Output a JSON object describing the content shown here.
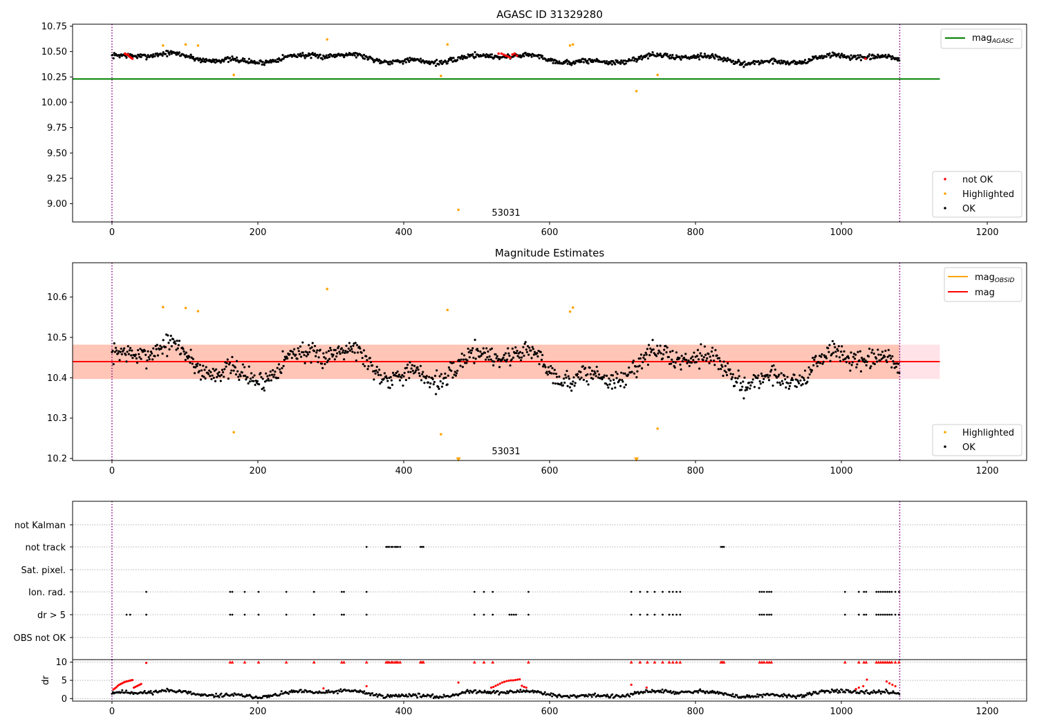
{
  "figure": {
    "panel1_title": "AGASC ID 31329280",
    "panel2_title": "Magnitude Estimates",
    "obsid_annotation": "53031"
  },
  "chart_data": [
    {
      "type": "scatter",
      "name": "panel1",
      "title": "AGASC ID 31329280",
      "xlim": [
        -54,
        1254
      ],
      "ylim": [
        8.82,
        10.77
      ],
      "xticks": [
        0,
        200,
        400,
        600,
        800,
        1000,
        1200
      ],
      "yticks": [
        10.75,
        10.5,
        10.25,
        10.0,
        9.75,
        9.5,
        9.25,
        9.0
      ],
      "ytick_labels": [
        "10.75",
        "10.50",
        "10.25",
        "10.00",
        "9.75",
        "9.50",
        "9.25",
        "9.00"
      ],
      "vlines": [
        0,
        1080
      ],
      "hline": {
        "label": "mag_AGASC",
        "y": 10.23,
        "x_range": [
          -54,
          1135
        ],
        "color": "#008000"
      },
      "annotation": {
        "text": "53031",
        "x": 540,
        "y": 8.86
      },
      "legends": [
        {
          "position": "upper-right",
          "entries": [
            {
              "label": "mag",
              "subscript": "AGASC",
              "color": "#008000",
              "marker": "line"
            }
          ]
        },
        {
          "position": "lower-right",
          "entries": [
            {
              "label": "not OK",
              "color": "#ff0000",
              "marker": "dot"
            },
            {
              "label": "Highlighted",
              "color": "#ffa500",
              "marker": "dot"
            },
            {
              "label": "OK",
              "color": "#000000",
              "marker": "dot"
            }
          ]
        }
      ],
      "series": [
        {
          "name": "OK",
          "color": "#000000",
          "generated": {
            "x_start": 0,
            "x_end": 1080,
            "step": 1.05,
            "base": 10.44,
            "amplitude": 0.035,
            "noise": 0.018,
            "drift": -0.02,
            "seed": 7
          }
        },
        {
          "name": "not OK",
          "color": "#ff0000",
          "x": [
            18,
            20,
            22,
            24,
            26,
            28,
            530,
            534,
            537,
            540,
            543,
            546,
            549,
            552,
            555,
            1033
          ],
          "y": [
            10.48,
            10.47,
            10.47,
            10.45,
            10.44,
            10.43,
            10.48,
            10.48,
            10.47,
            10.46,
            10.45,
            10.44,
            10.47,
            10.48,
            10.46,
            10.43
          ]
        },
        {
          "name": "Highlighted",
          "color": "#ffa500",
          "x": [
            70,
            101,
            118,
            167,
            295,
            451,
            460,
            475,
            628,
            632,
            719,
            748
          ],
          "y": [
            10.56,
            10.57,
            10.56,
            10.27,
            10.62,
            10.26,
            10.57,
            8.94,
            10.56,
            10.57,
            10.11,
            10.27
          ]
        }
      ]
    },
    {
      "type": "scatter",
      "name": "panel2",
      "title": "Magnitude Estimates",
      "xlim": [
        -54,
        1254
      ],
      "ylim": [
        10.195,
        10.685
      ],
      "xticks": [
        0,
        200,
        400,
        600,
        800,
        1000,
        1200
      ],
      "yticks": [
        10.6,
        10.5,
        10.4,
        10.3,
        10.2
      ],
      "ytick_labels": [
        "10.6",
        "10.5",
        "10.4",
        "10.3",
        "10.2"
      ],
      "vlines": [
        0,
        1080
      ],
      "mag_line": {
        "label": "mag",
        "y": 10.44,
        "x_range": [
          -54,
          1135
        ],
        "color": "#ff0000"
      },
      "band_inner": {
        "y_range": [
          10.397,
          10.482
        ],
        "color": "#ffa07a"
      },
      "band_outer": {
        "y_range": [
          10.397,
          10.482
        ],
        "color": "#ffc0cb"
      },
      "annotation": {
        "text": "53031",
        "x": 540,
        "y": 10.208
      },
      "legends": [
        {
          "position": "upper-right",
          "entries": [
            {
              "label": "mag",
              "subscript": "OBSID",
              "color": "#ffa500",
              "marker": "line"
            },
            {
              "label": "mag",
              "subscript": "",
              "color": "#ff0000",
              "marker": "line"
            }
          ]
        },
        {
          "position": "lower-right",
          "entries": [
            {
              "label": "Highlighted",
              "color": "#ffa500",
              "marker": "dot"
            },
            {
              "label": "OK",
              "color": "#000000",
              "marker": "dot"
            }
          ]
        }
      ],
      "series": [
        {
          "name": "OK",
          "color": "#000000",
          "generated": {
            "x_start": 0,
            "x_end": 1080,
            "step": 1.05,
            "base": 10.44,
            "amplitude": 0.035,
            "noise": 0.018,
            "drift": -0.02,
            "seed": 7
          }
        },
        {
          "name": "Highlighted",
          "color": "#ffa500",
          "x": [
            70,
            101,
            118,
            167,
            295,
            451,
            460,
            628,
            632,
            748
          ],
          "y": [
            10.575,
            10.573,
            10.565,
            10.265,
            10.62,
            10.26,
            10.568,
            10.564,
            10.574,
            10.274
          ]
        },
        {
          "name": "Highlighted (off-scale)",
          "color": "#ffa500",
          "marker": "triangle-down",
          "x": [
            475,
            719
          ],
          "y": [
            10.198,
            10.198
          ]
        }
      ]
    },
    {
      "type": "scatter",
      "name": "panel3-flags",
      "xlim": [
        -54,
        1254
      ],
      "vlines": [
        0,
        1080
      ],
      "rows": [
        {
          "label": "not Kalman",
          "x": []
        },
        {
          "label": "not track",
          "x": [
            349,
            376,
            378,
            380,
            383,
            385,
            388,
            390,
            392,
            395,
            423,
            425,
            427,
            835,
            837,
            839
          ]
        },
        {
          "label": "Sat. pixel.",
          "x": []
        },
        {
          "label": "Ion. rad.",
          "x": [
            47,
            162,
            165,
            182,
            201,
            239,
            277,
            315,
            318,
            349,
            497,
            510,
            522,
            571,
            712,
            724,
            734,
            744,
            755,
            764,
            769,
            774,
            779,
            888,
            891,
            894,
            898,
            901,
            904,
            1005,
            1024,
            1031,
            1034,
            1048,
            1051,
            1054,
            1057,
            1060,
            1063,
            1066,
            1069,
            1074,
            1079
          ]
        },
        {
          "label": "dr > 5",
          "x": [
            20,
            25,
            47,
            162,
            165,
            182,
            201,
            239,
            277,
            315,
            318,
            349,
            497,
            510,
            522,
            545,
            548,
            551,
            554,
            571,
            712,
            724,
            734,
            744,
            755,
            764,
            769,
            774,
            779,
            888,
            891,
            894,
            898,
            901,
            904,
            1005,
            1024,
            1031,
            1034,
            1048,
            1051,
            1054,
            1057,
            1060,
            1063,
            1066,
            1069,
            1074,
            1079
          ]
        },
        {
          "label": "OBS not OK",
          "x": []
        }
      ]
    },
    {
      "type": "scatter",
      "name": "panel4-dr",
      "ylabel": "dr",
      "xlim": [
        -54,
        1254
      ],
      "ylim": [
        -0.7,
        10.7
      ],
      "xticks": [
        0,
        200,
        400,
        600,
        800,
        1000,
        1200
      ],
      "yticks": [
        10,
        5,
        0
      ],
      "ytick_labels": [
        "10",
        "5",
        "0"
      ],
      "vlines": [
        0,
        1080
      ],
      "capped_marker": {
        "y": 10,
        "color": "#ff0000",
        "marker": "triangle-up",
        "x": [
          162,
          165,
          182,
          201,
          239,
          277,
          315,
          318,
          349,
          376,
          378,
          380,
          383,
          385,
          388,
          390,
          392,
          395,
          423,
          425,
          427,
          497,
          510,
          522,
          571,
          712,
          724,
          734,
          744,
          755,
          764,
          769,
          774,
          779,
          835,
          837,
          839,
          888,
          891,
          894,
          898,
          901,
          904,
          1005,
          1024,
          1031,
          1034,
          1048,
          1051,
          1054,
          1057,
          1060,
          1063,
          1066,
          1069,
          1074,
          1079
        ]
      },
      "series": [
        {
          "name": "dr OK",
          "color": "#000000",
          "generated": {
            "x_start": 0,
            "x_end": 1080,
            "step": 1.4,
            "base": 1.3,
            "amplitude": 0.7,
            "noise": 0.35,
            "seed": 11
          }
        },
        {
          "name": "dr not OK",
          "color": "#ff0000",
          "x": [
            2,
            4,
            6,
            8,
            10,
            12,
            14,
            16,
            18,
            20,
            22,
            24,
            26,
            28,
            30,
            32,
            34,
            36,
            38,
            40,
            47,
            290,
            349,
            475,
            520,
            523,
            526,
            529,
            532,
            535,
            538,
            541,
            544,
            547,
            550,
            553,
            556,
            559,
            562,
            565,
            568,
            712,
            733,
            1020,
            1024,
            1030,
            1035,
            1062,
            1066,
            1070,
            1074
          ],
          "y": [
            2.5,
            2.8,
            3.1,
            3.5,
            3.8,
            4.0,
            4.2,
            4.4,
            4.6,
            4.7,
            4.8,
            4.9,
            5.0,
            5.1,
            3.0,
            3.2,
            3.4,
            3.6,
            3.8,
            4.0,
            9.8,
            2.8,
            3.4,
            4.4,
            3.0,
            3.2,
            3.5,
            3.8,
            4.1,
            4.4,
            4.6,
            4.8,
            4.9,
            5.0,
            5.0,
            5.1,
            5.2,
            5.3,
            3.5,
            3.2,
            3.0,
            3.8,
            3.0,
            2.6,
            3.0,
            3.4,
            5.2,
            4.7,
            4.2,
            3.8,
            3.4
          ]
        }
      ]
    }
  ]
}
